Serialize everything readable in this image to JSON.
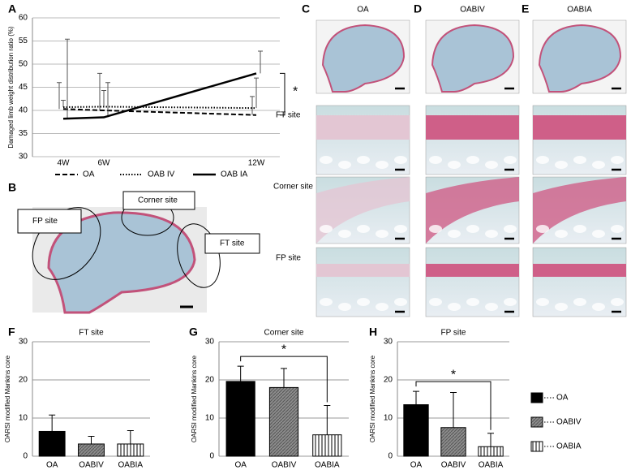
{
  "panel_labels": [
    "A",
    "B",
    "C",
    "D",
    "E",
    "F",
    "G",
    "H"
  ],
  "histology": {
    "columns": [
      "OA",
      "OABIV",
      "OABIA"
    ],
    "rows": [
      "FT site",
      "Corner site",
      "FP site"
    ]
  },
  "schematic": {
    "labels": [
      "FP site",
      "Corner site",
      "FT site"
    ]
  },
  "bar_legend": {
    "labels": [
      "OA",
      "OABIV",
      "OABIA"
    ],
    "colors": [
      "#000000",
      "#8c8c8c",
      "#ffffff"
    ],
    "patterns": [
      "solid",
      "hatch",
      "vertical"
    ]
  },
  "chart_data": [
    {
      "type": "line",
      "ylabel": "Damaged limb weight distribution ratio (%)",
      "categories": [
        "4W",
        "6W",
        "12W"
      ],
      "ylim": [
        30,
        60
      ],
      "yticks": [
        30,
        35,
        40,
        45,
        50,
        55,
        60
      ],
      "grid": true,
      "annotation": "*",
      "series": [
        {
          "name": "OA",
          "color": "#000000",
          "dash": "dashed",
          "values": [
            40.3,
            40,
            39
          ],
          "errors": [
            5.7,
            8,
            4
          ]
        },
        {
          "name": "OAB IV",
          "color": "#000000",
          "dash": "dotted",
          "values": [
            40.7,
            40.8,
            40.5
          ],
          "errors": [
            1.5,
            3.5,
            6.5
          ]
        },
        {
          "name": "OAB IA",
          "color": "#000000",
          "dash": "solid",
          "values": [
            38.2,
            38.5,
            48
          ],
          "errors": [
            17.2,
            7.5,
            4.8
          ]
        }
      ]
    },
    {
      "type": "bar",
      "title": "FT site",
      "ylabel": "OARSI modified Mankins core",
      "categories": [
        "OA",
        "OABIV",
        "OABIA"
      ],
      "values": [
        6.5,
        3.2,
        3.2
      ],
      "errors": [
        4.3,
        2,
        3.5
      ],
      "ylim": [
        0,
        30
      ],
      "yticks": [
        0,
        10,
        20,
        30
      ],
      "grid": true
    },
    {
      "type": "bar",
      "title": "Corner site",
      "ylabel": "OARSI modified Mankins core",
      "categories": [
        "OA",
        "OABIV",
        "OABIA"
      ],
      "values": [
        19.6,
        18,
        5.6
      ],
      "errors": [
        4,
        5,
        7.7
      ],
      "ylim": [
        0,
        30
      ],
      "yticks": [
        0,
        10,
        20,
        30
      ],
      "grid": true,
      "annotation": "*"
    },
    {
      "type": "bar",
      "title": "FP site",
      "ylabel": "OARSI modified Mankins core",
      "categories": [
        "OA",
        "OABIV",
        "OABIA"
      ],
      "values": [
        13.5,
        7.5,
        2.5
      ],
      "errors": [
        3.5,
        9.2,
        3.5
      ],
      "ylim": [
        0,
        30
      ],
      "yticks": [
        0,
        10,
        20,
        30
      ],
      "grid": true,
      "annotation": "*"
    }
  ]
}
